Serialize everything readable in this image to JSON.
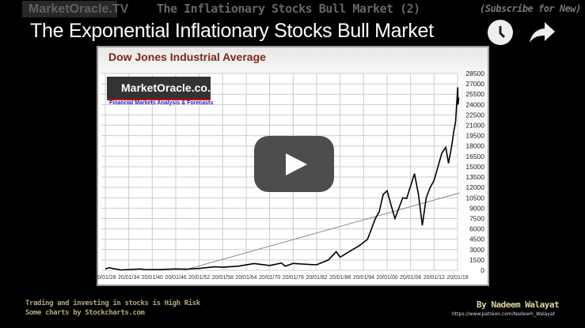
{
  "player": {
    "video_title": "The Exponential Inflationary Stocks Bull Market",
    "watch_later_icon": "clock-icon",
    "share_icon": "share-arrow-icon",
    "play_icon": "youtube-play-icon"
  },
  "slide": {
    "logo_text": "MarketOracle.TV",
    "title": "The Inflationary Stocks Bull Market (2)",
    "subscribe": "(Subscribe for New)",
    "footer_left_1": "Trading and investing in stocks is High Risk",
    "footer_left_2": "Some charts by Stockcharts.com",
    "author": "By Nadeem Walayat",
    "author_url": "https://www.patreon.com/Nadeem_Walayat"
  },
  "chart_logo": {
    "name": "MarketOracle.co.uk",
    "tagline": "Financial Markets Analysis & Forecasts"
  },
  "chart_data": {
    "type": "line",
    "title": "Dow Jones Industrial Average",
    "xlabel": "",
    "ylabel": "",
    "ylim": [
      0,
      28500
    ],
    "yticks": [
      "0",
      "1500",
      "3000",
      "4500",
      "6000",
      "7500",
      "9000",
      "10500",
      "12000",
      "13500",
      "15000",
      "16500",
      "18000",
      "19500",
      "21000",
      "22500",
      "24000",
      "25500",
      "27000",
      "28500"
    ],
    "xticks": [
      "20/01/28",
      "20/01/34",
      "20/01/40",
      "20/01/46",
      "20/01/52",
      "20/01/58",
      "20/01/64",
      "20/01/70",
      "20/01/76",
      "20/01/82",
      "20/01/88",
      "20/01/94",
      "20/01/00",
      "20/01/06",
      "20/01/12",
      "20/01/18"
    ],
    "xlim": [
      1928,
      2018.5
    ],
    "grid": true,
    "colors": {
      "series": "#000000",
      "trend": "#888888"
    },
    "series": [
      {
        "points": [
          [
            1928,
            200
          ],
          [
            1929,
            380
          ],
          [
            1930,
            250
          ],
          [
            1932,
            60
          ],
          [
            1937,
            190
          ],
          [
            1938,
            120
          ],
          [
            1942,
            100
          ],
          [
            1946,
            200
          ],
          [
            1949,
            170
          ],
          [
            1952,
            270
          ],
          [
            1956,
            500
          ],
          [
            1958,
            450
          ],
          [
            1962,
            600
          ],
          [
            1966,
            990
          ],
          [
            1970,
            700
          ],
          [
            1973,
            1050
          ],
          [
            1974,
            600
          ],
          [
            1976,
            1000
          ],
          [
            1980,
            850
          ],
          [
            1982,
            800
          ],
          [
            1985,
            1500
          ],
          [
            1987,
            2700
          ],
          [
            1988,
            1900
          ],
          [
            1990,
            2600
          ],
          [
            1993,
            3600
          ],
          [
            1995,
            4500
          ],
          [
            1997,
            7500
          ],
          [
            1998,
            8500
          ],
          [
            1999,
            11000
          ],
          [
            2000,
            11500
          ],
          [
            2001,
            9500
          ],
          [
            2002,
            7500
          ],
          [
            2004,
            10500
          ],
          [
            2005,
            10400
          ],
          [
            2007,
            14000
          ],
          [
            2008,
            11000
          ],
          [
            2009,
            6500
          ],
          [
            2010,
            10500
          ],
          [
            2011,
            12000
          ],
          [
            2012,
            13000
          ],
          [
            2013,
            15000
          ],
          [
            2014,
            17000
          ],
          [
            2015,
            17800
          ],
          [
            2015.7,
            15500
          ],
          [
            2016.5,
            18000
          ],
          [
            2017,
            20000
          ],
          [
            2017.5,
            21500
          ],
          [
            2018.05,
            26500
          ],
          [
            2018.15,
            24000
          ],
          [
            2018.3,
            25000
          ]
        ]
      },
      {
        "points": [
          [
            1948,
            0
          ],
          [
            2018.5,
            11200
          ]
        ]
      }
    ]
  }
}
